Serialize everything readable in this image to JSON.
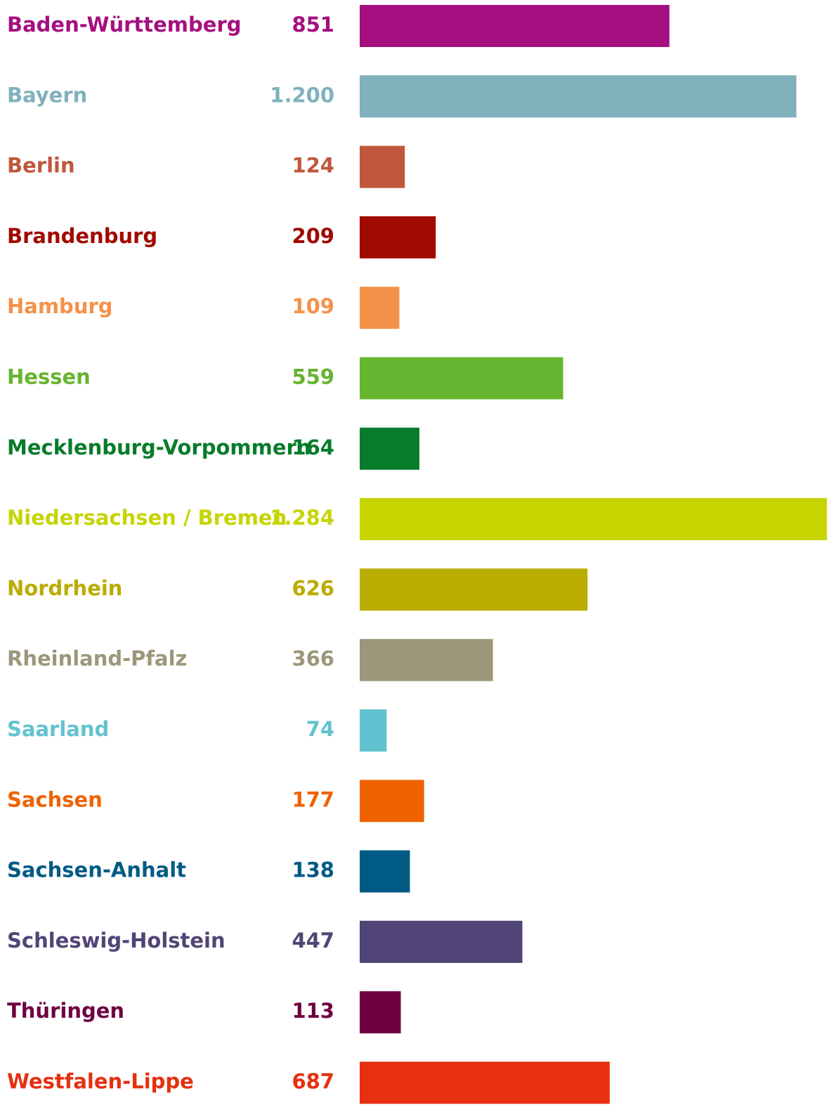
{
  "chart_data": {
    "type": "hbar",
    "categories": [
      "Baden-Württemberg",
      "Bayern",
      "Berlin",
      "Brandenburg",
      "Hamburg",
      "Hessen",
      "Mecklenburg-Vorpommern",
      "Niedersachsen / Bremen",
      "Nordrhein",
      "Rheinland-Pfalz",
      "Saarland",
      "Sachsen",
      "Sachsen-Anhalt",
      "Schleswig-Holstein",
      "Thüringen",
      "Westfalen-Lippe"
    ],
    "values": [
      851,
      1200,
      124,
      209,
      109,
      559,
      164,
      1284,
      626,
      366,
      74,
      177,
      138,
      447,
      113,
      687
    ],
    "value_labels": [
      "851",
      "1.200",
      "124",
      "209",
      "109",
      "559",
      "164",
      "1.284",
      "626",
      "366",
      "74",
      "177",
      "138",
      "447",
      "113",
      "687"
    ],
    "colors": [
      "#a50f80",
      "#80b1bd",
      "#c0573c",
      "#a10a00",
      "#f4924a",
      "#66b42f",
      "#077c2b",
      "#c6d400",
      "#baac00",
      "#9c977b",
      "#63c2d0",
      "#ee6300",
      "#005b84",
      "#514476",
      "#6f0042",
      "#e6300f"
    ]
  }
}
